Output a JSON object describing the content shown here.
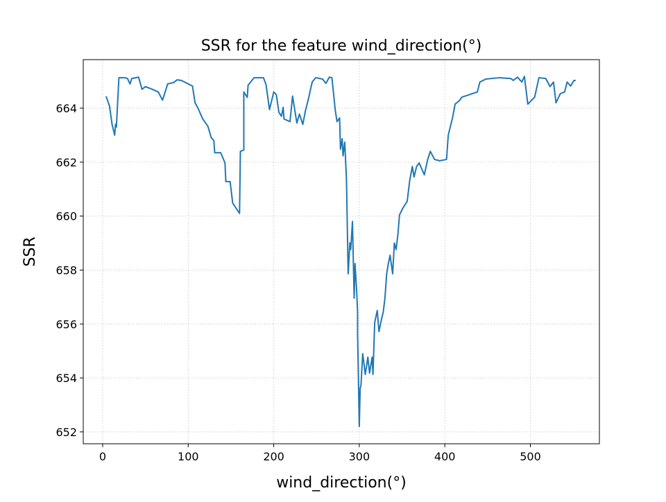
{
  "chart_data": {
    "type": "line",
    "title": "SSR for the feature wind_direction(°)",
    "x_label": "wind_direction(°)",
    "y_label": "SSR",
    "grid": true,
    "xlim": [
      -22.7,
      580.7
    ],
    "ylim": [
      651.56,
      665.8
    ],
    "xticks": [
      0,
      100,
      200,
      300,
      400,
      500
    ],
    "yticks": [
      652,
      654,
      656,
      658,
      660,
      662,
      664
    ],
    "x": [
      4,
      8,
      11,
      14,
      15,
      16,
      19,
      26,
      29,
      32,
      34,
      42,
      46,
      50,
      58,
      65,
      70,
      76,
      83,
      87,
      92,
      105,
      108,
      111,
      117,
      123,
      127,
      130,
      131,
      138,
      143,
      144,
      149,
      152,
      160,
      161,
      165,
      165,
      169,
      170,
      177,
      188,
      191,
      195,
      200,
      203,
      206,
      209,
      211,
      212,
      219,
      222,
      227,
      230,
      234,
      237,
      241,
      243,
      245,
      249,
      257,
      261,
      265,
      268,
      272,
      274,
      277,
      278,
      280,
      281,
      283,
      285,
      287,
      289,
      290,
      292,
      294,
      295,
      297,
      298,
      298,
      300,
      301,
      302,
      304,
      307,
      310,
      312,
      315,
      316,
      318,
      321,
      323,
      326,
      328,
      330,
      332,
      334,
      336,
      339,
      341,
      343,
      345,
      347,
      351,
      356,
      359,
      362,
      364,
      367,
      370,
      376,
      380,
      383,
      388,
      394,
      402,
      404,
      409,
      412,
      417,
      420,
      438,
      441,
      448,
      464,
      477,
      480,
      485,
      490,
      493,
      497,
      505,
      510,
      518,
      523,
      527,
      530,
      535,
      540,
      543,
      547,
      551,
      553
    ],
    "series": [
      {
        "name": "SSR",
        "color": "#1f77b4",
        "values": [
          664.44,
          664.08,
          663.4,
          663.0,
          663.4,
          663.3,
          665.13,
          665.13,
          665.1,
          664.9,
          665.1,
          665.15,
          664.7,
          664.8,
          664.7,
          664.6,
          664.3,
          664.9,
          664.95,
          665.05,
          665.03,
          664.82,
          664.2,
          664.03,
          663.6,
          663.33,
          662.9,
          662.8,
          662.35,
          662.35,
          661.97,
          661.28,
          661.28,
          660.48,
          660.1,
          662.4,
          662.45,
          664.6,
          664.4,
          664.85,
          665.13,
          665.13,
          664.87,
          663.95,
          664.6,
          664.5,
          663.85,
          663.7,
          664.03,
          663.6,
          663.5,
          664.45,
          663.45,
          663.78,
          663.4,
          663.9,
          664.4,
          664.7,
          664.97,
          665.13,
          665.08,
          664.92,
          665.15,
          665.13,
          663.9,
          663.5,
          663.64,
          662.48,
          662.87,
          662.23,
          662.74,
          661.38,
          657.86,
          659.01,
          658.76,
          659.8,
          656.96,
          658.24,
          657.2,
          656.44,
          655.67,
          652.2,
          653.6,
          653.74,
          654.9,
          654.13,
          654.77,
          654.18,
          654.77,
          654.13,
          656.05,
          656.5,
          655.72,
          656.18,
          656.44,
          656.96,
          657.86,
          658.24,
          658.55,
          657.86,
          659.0,
          658.76,
          659.27,
          660.04,
          660.3,
          660.55,
          661.33,
          661.84,
          661.45,
          661.84,
          661.97,
          661.53,
          662.1,
          662.4,
          662.1,
          662.05,
          662.1,
          663.0,
          663.64,
          664.15,
          664.28,
          664.41,
          664.6,
          664.97,
          665.08,
          665.13,
          665.1,
          665.03,
          665.15,
          664.97,
          665.18,
          664.15,
          664.41,
          665.13,
          665.1,
          664.8,
          664.97,
          664.2,
          664.54,
          664.6,
          664.97,
          664.82,
          665.03,
          665.03
        ]
      }
    ]
  }
}
